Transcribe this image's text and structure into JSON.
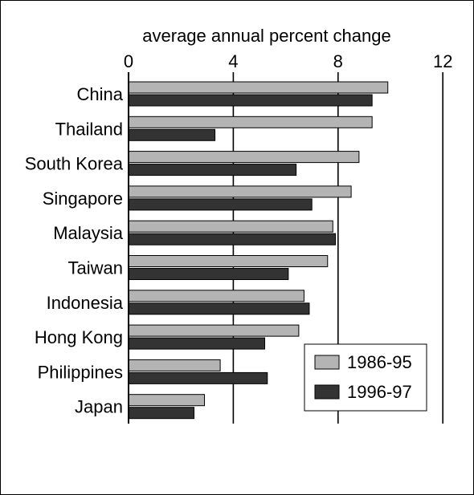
{
  "chart_data": {
    "type": "bar",
    "orientation": "horizontal",
    "title": "average annual percent change",
    "xlim": [
      0,
      12
    ],
    "xticks": [
      0,
      4,
      8,
      12
    ],
    "grid": true,
    "legend_position": "bottom-right",
    "categories": [
      "China",
      "Thailand",
      "South Korea",
      "Singapore",
      "Malaysia",
      "Taiwan",
      "Indonesia",
      "Hong Kong",
      "Philippines",
      "Japan"
    ],
    "series": [
      {
        "name": "1986-95",
        "color": "#b4b4b4",
        "values": [
          9.9,
          9.3,
          8.8,
          8.5,
          7.8,
          7.6,
          6.7,
          6.5,
          3.5,
          2.9
        ]
      },
      {
        "name": "1996-97",
        "color": "#333333",
        "values": [
          9.3,
          3.3,
          6.4,
          7.0,
          7.9,
          6.1,
          6.9,
          5.2,
          5.3,
          2.5
        ]
      }
    ]
  }
}
